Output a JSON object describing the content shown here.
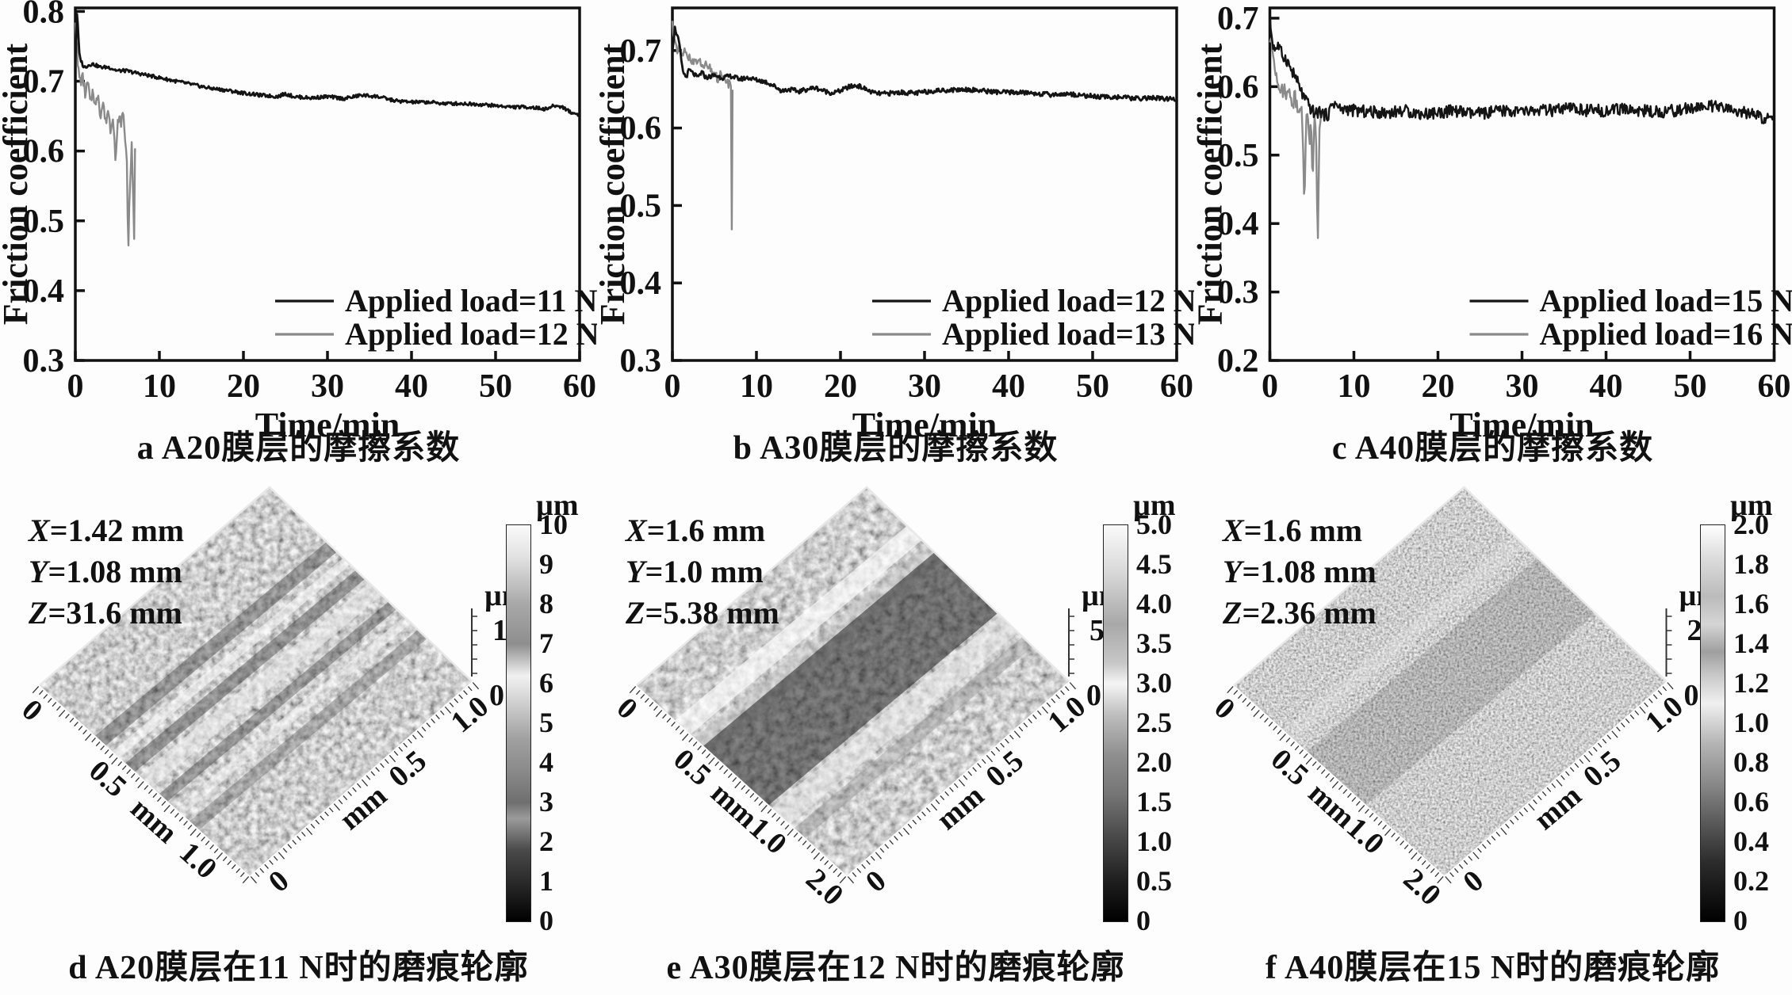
{
  "chart_data": [
    {
      "type": "line",
      "panel_label": "a",
      "caption": "a  A20膜层的摩擦系数",
      "xlabel": "Time/min",
      "ylabel": "Friction coefficient",
      "xlim": [
        0,
        60
      ],
      "ylim": [
        0.3,
        0.805
      ],
      "xticks": [
        "0",
        "10",
        "20",
        "30",
        "40",
        "50",
        "60"
      ],
      "yticks": [
        "0.3",
        "0.4",
        "0.5",
        "0.6",
        "0.7",
        "0.8"
      ],
      "grid": false,
      "legend_position": "lower right",
      "series": [
        {
          "name": "Applied load=11 N",
          "color": "#141414",
          "width": 2.8,
          "noise": 0.0025,
          "seed": 3,
          "points": [
            [
              0,
              0.72
            ],
            [
              0.2,
              0.8
            ],
            [
              0.5,
              0.735
            ],
            [
              1,
              0.72
            ],
            [
              2,
              0.725
            ],
            [
              3,
              0.72
            ],
            [
              4,
              0.72
            ],
            [
              5,
              0.715
            ],
            [
              6,
              0.715
            ],
            [
              8,
              0.71
            ],
            [
              10,
              0.705
            ],
            [
              12,
              0.7
            ],
            [
              14,
              0.695
            ],
            [
              16,
              0.69
            ],
            [
              18,
              0.687
            ],
            [
              20,
              0.683
            ],
            [
              22,
              0.68
            ],
            [
              24,
              0.678
            ],
            [
              25,
              0.682
            ],
            [
              26,
              0.678
            ],
            [
              28,
              0.676
            ],
            [
              30,
              0.678
            ],
            [
              32,
              0.675
            ],
            [
              34,
              0.68
            ],
            [
              36,
              0.678
            ],
            [
              38,
              0.672
            ],
            [
              40,
              0.67
            ],
            [
              42,
              0.67
            ],
            [
              44,
              0.668
            ],
            [
              46,
              0.668
            ],
            [
              48,
              0.667
            ],
            [
              50,
              0.665
            ],
            [
              52,
              0.663
            ],
            [
              54,
              0.663
            ],
            [
              56,
              0.66
            ],
            [
              57,
              0.665
            ],
            [
              58,
              0.663
            ],
            [
              59,
              0.655
            ],
            [
              60,
              0.652
            ]
          ]
        },
        {
          "name": "Applied load=12 N",
          "color": "#8a8a8a",
          "width": 2.4,
          "noise": 0.008,
          "seed": 7,
          "points": [
            [
              0,
              0.79
            ],
            [
              0.3,
              0.72
            ],
            [
              0.6,
              0.7
            ],
            [
              0.9,
              0.705
            ],
            [
              1.2,
              0.68
            ],
            [
              1.5,
              0.7
            ],
            [
              1.8,
              0.665
            ],
            [
              2.1,
              0.69
            ],
            [
              2.4,
              0.66
            ],
            [
              2.7,
              0.685
            ],
            [
              3,
              0.65
            ],
            [
              3.3,
              0.67
            ],
            [
              3.6,
              0.64
            ],
            [
              3.9,
              0.66
            ],
            [
              4.2,
              0.63
            ],
            [
              4.5,
              0.655
            ],
            [
              4.8,
              0.58
            ],
            [
              5.1,
              0.65
            ],
            [
              5.4,
              0.64
            ],
            [
              5.7,
              0.655
            ],
            [
              5.9,
              0.62
            ],
            [
              6.1,
              0.6
            ],
            [
              6.3,
              0.46
            ],
            [
              6.5,
              0.55
            ],
            [
              6.7,
              0.61
            ],
            [
              6.9,
              0.52
            ],
            [
              7,
              0.47
            ],
            [
              7.1,
              0.61
            ]
          ]
        }
      ]
    },
    {
      "type": "line",
      "panel_label": "b",
      "caption": "b  A30膜层的摩擦系数",
      "xlabel": "Time/min",
      "ylabel": "Friction coefficient",
      "xlim": [
        0,
        60
      ],
      "ylim": [
        0.3,
        0.755
      ],
      "xticks": [
        "0",
        "10",
        "20",
        "30",
        "40",
        "50",
        "60"
      ],
      "yticks": [
        "0.3",
        "0.4",
        "0.5",
        "0.6",
        "0.7"
      ],
      "grid": false,
      "legend_position": "lower right",
      "series": [
        {
          "name": "Applied load=12 N",
          "color": "#141414",
          "width": 2.8,
          "noise": 0.003,
          "seed": 5,
          "points": [
            [
              0,
              0.7
            ],
            [
              0.3,
              0.73
            ],
            [
              0.8,
              0.71
            ],
            [
              1.2,
              0.675
            ],
            [
              1.6,
              0.665
            ],
            [
              2,
              0.675
            ],
            [
              2.5,
              0.67
            ],
            [
              3,
              0.665
            ],
            [
              3.5,
              0.672
            ],
            [
              4,
              0.665
            ],
            [
              5,
              0.668
            ],
            [
              6,
              0.665
            ],
            [
              7,
              0.667
            ],
            [
              8,
              0.663
            ],
            [
              9,
              0.665
            ],
            [
              10,
              0.662
            ],
            [
              11,
              0.66
            ],
            [
              12,
              0.655
            ],
            [
              13,
              0.648
            ],
            [
              14,
              0.65
            ],
            [
              15,
              0.647
            ],
            [
              16,
              0.65
            ],
            [
              17,
              0.652
            ],
            [
              18,
              0.648
            ],
            [
              19,
              0.645
            ],
            [
              20,
              0.648
            ],
            [
              21,
              0.653
            ],
            [
              22,
              0.655
            ],
            [
              23,
              0.65
            ],
            [
              24,
              0.645
            ],
            [
              25,
              0.644
            ],
            [
              27,
              0.646
            ],
            [
              29,
              0.645
            ],
            [
              31,
              0.648
            ],
            [
              33,
              0.649
            ],
            [
              35,
              0.65
            ],
            [
              37,
              0.648
            ],
            [
              39,
              0.646
            ],
            [
              41,
              0.646
            ],
            [
              43,
              0.645
            ],
            [
              45,
              0.643
            ],
            [
              47,
              0.644
            ],
            [
              49,
              0.642
            ],
            [
              51,
              0.64
            ],
            [
              53,
              0.64
            ],
            [
              55,
              0.638
            ],
            [
              57,
              0.639
            ],
            [
              59,
              0.637
            ],
            [
              60,
              0.638
            ]
          ]
        },
        {
          "name": "Applied load=13 N",
          "color": "#8a8a8a",
          "width": 2.4,
          "noise": 0.006,
          "seed": 11,
          "points": [
            [
              0,
              0.735
            ],
            [
              0.3,
              0.71
            ],
            [
              0.6,
              0.695
            ],
            [
              0.9,
              0.705
            ],
            [
              1.2,
              0.69
            ],
            [
              1.5,
              0.7
            ],
            [
              1.8,
              0.688
            ],
            [
              2.1,
              0.695
            ],
            [
              2.4,
              0.683
            ],
            [
              2.7,
              0.69
            ],
            [
              3,
              0.68
            ],
            [
              3.3,
              0.687
            ],
            [
              3.6,
              0.676
            ],
            [
              3.9,
              0.683
            ],
            [
              4.2,
              0.672
            ],
            [
              4.5,
              0.678
            ],
            [
              4.8,
              0.668
            ],
            [
              5.1,
              0.672
            ],
            [
              5.4,
              0.663
            ],
            [
              5.7,
              0.668
            ],
            [
              6,
              0.66
            ],
            [
              6.3,
              0.665
            ],
            [
              6.6,
              0.657
            ],
            [
              6.9,
              0.66
            ],
            [
              7,
              0.655
            ],
            [
              7.08,
              0.42
            ],
            [
              7.16,
              0.65
            ]
          ]
        }
      ]
    },
    {
      "type": "line",
      "panel_label": "c",
      "caption": "c  A40膜层的摩擦系数",
      "xlabel": "Time/min",
      "ylabel": "Friction coefficient",
      "xlim": [
        0,
        60
      ],
      "ylim": [
        0.2,
        0.715
      ],
      "xticks": [
        "0",
        "10",
        "20",
        "30",
        "40",
        "50",
        "60"
      ],
      "yticks": [
        "0.2",
        "0.3",
        "0.4",
        "0.5",
        "0.6",
        "0.7"
      ],
      "grid": false,
      "legend_position": "lower right",
      "series": [
        {
          "name": "Applied load=15 N",
          "color": "#141414",
          "width": 2.4,
          "noise": 0.009,
          "seed": 9,
          "points": [
            [
              0,
              0.7
            ],
            [
              0.3,
              0.665
            ],
            [
              0.6,
              0.655
            ],
            [
              1,
              0.66
            ],
            [
              1.5,
              0.645
            ],
            [
              2,
              0.64
            ],
            [
              2.5,
              0.625
            ],
            [
              3,
              0.615
            ],
            [
              3.5,
              0.6
            ],
            [
              4,
              0.585
            ],
            [
              4.5,
              0.575
            ],
            [
              5,
              0.565
            ],
            [
              5.5,
              0.56
            ],
            [
              6,
              0.565
            ],
            [
              6.5,
              0.558
            ],
            [
              7,
              0.56
            ],
            [
              7.5,
              0.578
            ],
            [
              8,
              0.572
            ],
            [
              8.5,
              0.565
            ],
            [
              9,
              0.568
            ],
            [
              10,
              0.565
            ],
            [
              12,
              0.563
            ],
            [
              14,
              0.562
            ],
            [
              16,
              0.565
            ],
            [
              18,
              0.56
            ],
            [
              20,
              0.562
            ],
            [
              22,
              0.565
            ],
            [
              24,
              0.56
            ],
            [
              26,
              0.562
            ],
            [
              28,
              0.565
            ],
            [
              30,
              0.563
            ],
            [
              32,
              0.565
            ],
            [
              34,
              0.565
            ],
            [
              36,
              0.568
            ],
            [
              38,
              0.565
            ],
            [
              40,
              0.565
            ],
            [
              42,
              0.567
            ],
            [
              44,
              0.565
            ],
            [
              46,
              0.563
            ],
            [
              48,
              0.565
            ],
            [
              50,
              0.568
            ],
            [
              52,
              0.572
            ],
            [
              54,
              0.568
            ],
            [
              56,
              0.563
            ],
            [
              58,
              0.558
            ],
            [
              59,
              0.552
            ],
            [
              60,
              0.553
            ]
          ]
        },
        {
          "name": "Applied load=16 N",
          "color": "#8a8a8a",
          "width": 2.4,
          "noise": 0.012,
          "seed": 13,
          "points": [
            [
              0,
              0.67
            ],
            [
              0.3,
              0.655
            ],
            [
              0.6,
              0.63
            ],
            [
              0.9,
              0.615
            ],
            [
              1.2,
              0.6
            ],
            [
              1.5,
              0.59
            ],
            [
              1.8,
              0.6
            ],
            [
              2.1,
              0.585
            ],
            [
              2.4,
              0.595
            ],
            [
              2.7,
              0.575
            ],
            [
              3,
              0.59
            ],
            [
              3.3,
              0.565
            ],
            [
              3.6,
              0.58
            ],
            [
              3.9,
              0.545
            ],
            [
              4.1,
              0.41
            ],
            [
              4.3,
              0.56
            ],
            [
              4.5,
              0.55
            ],
            [
              4.7,
              0.52
            ],
            [
              4.9,
              0.555
            ],
            [
              5.1,
              0.46
            ],
            [
              5.3,
              0.55
            ],
            [
              5.5,
              0.52
            ],
            [
              5.7,
              0.37
            ],
            [
              5.9,
              0.545
            ],
            [
              6.1,
              0.555
            ]
          ]
        }
      ]
    }
  ],
  "surfaces": [
    {
      "panel_label": "d",
      "caption": "d  A20膜层在11 N时的磨痕轮廓",
      "annotation": [
        "X=1.42 mm",
        "Y=1.08 mm",
        "Z=31.6 mm"
      ],
      "z_axis": {
        "unit": "µm",
        "max": "10",
        "min": "0"
      },
      "axis_left": {
        "labels": [
          "0",
          "0.5",
          "mm",
          "1.0"
        ]
      },
      "axis_right": {
        "labels": [
          "0",
          "mm",
          "0.5",
          "1.0"
        ]
      },
      "colorbar": {
        "unit": "µm",
        "ticks": [
          "10",
          "9",
          "8",
          "7",
          "6",
          "5",
          "4",
          "3",
          "2",
          "1",
          "0"
        ]
      }
    },
    {
      "panel_label": "e",
      "caption": "e  A30膜层在12 N时的磨痕轮廓",
      "annotation": [
        "X=1.6 mm",
        "Y=1.0 mm",
        "Z=5.38 mm"
      ],
      "z_axis": {
        "unit": "µm",
        "max": "5",
        "min": "0"
      },
      "axis_left": {
        "labels": [
          "0",
          "0.5",
          "mm",
          "1.0",
          "2.0"
        ]
      },
      "axis_right": {
        "labels": [
          "0",
          "mm",
          "0.5",
          "1.0"
        ]
      },
      "colorbar": {
        "unit": "µm",
        "ticks": [
          "5.0",
          "4.5",
          "4.0",
          "3.5",
          "3.0",
          "2.5",
          "2.0",
          "1.5",
          "1.0",
          "0.5",
          "0"
        ]
      }
    },
    {
      "panel_label": "f",
      "caption": "f  A40膜层在15 N时的磨痕轮廓",
      "annotation": [
        "X=1.6 mm",
        "Y=1.08 mm",
        "Z=2.36 mm"
      ],
      "z_axis": {
        "unit": "µm",
        "max": "2",
        "min": "0"
      },
      "axis_left": {
        "labels": [
          "0",
          "0.5",
          "mm",
          "1.0",
          "2.0"
        ]
      },
      "axis_right": {
        "labels": [
          "0",
          "mm",
          "0.5",
          "1.0"
        ]
      },
      "colorbar": {
        "unit": "µm",
        "ticks": [
          "2.0",
          "1.8",
          "1.6",
          "1.4",
          "1.2",
          "1.0",
          "0.8",
          "0.6",
          "0.4",
          "0.2",
          "0"
        ]
      }
    }
  ]
}
